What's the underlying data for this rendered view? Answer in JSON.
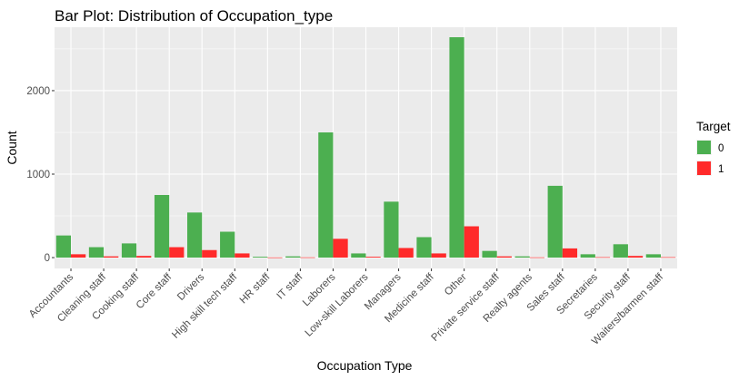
{
  "chart_data": {
    "type": "bar",
    "title": "Bar Plot: Distribution of Occupation_type",
    "xlabel": "Occupation Type",
    "ylabel": "Count",
    "ylim": [
      -130,
      2760
    ],
    "yticks": [
      0,
      1000,
      2000
    ],
    "grid": true,
    "legend_position": "right",
    "legend_title": "Target",
    "categories": [
      "Accountants",
      "Cleaning staff",
      "Cooking staff",
      "Core staff",
      "Drivers",
      "High skill tech staff",
      "HR staff",
      "IT staff",
      "Laborers",
      "Low-skill Laborers",
      "Managers",
      "Medicine staff",
      "Other",
      "Private service staff",
      "Realty agents",
      "Sales staff",
      "Secretaries",
      "Security staff",
      "Waiters/barmen staff"
    ],
    "series": [
      {
        "name": "0",
        "color": "#4caf50",
        "values": [
          265,
          125,
          170,
          750,
          540,
          310,
          10,
          15,
          1500,
          50,
          670,
          245,
          2640,
          80,
          15,
          860,
          40,
          160,
          40
        ]
      },
      {
        "name": "1",
        "color": "#ff2a2a",
        "values": [
          40,
          15,
          20,
          125,
          90,
          50,
          2,
          3,
          225,
          10,
          115,
          50,
          375,
          15,
          3,
          110,
          5,
          20,
          5
        ]
      }
    ]
  }
}
